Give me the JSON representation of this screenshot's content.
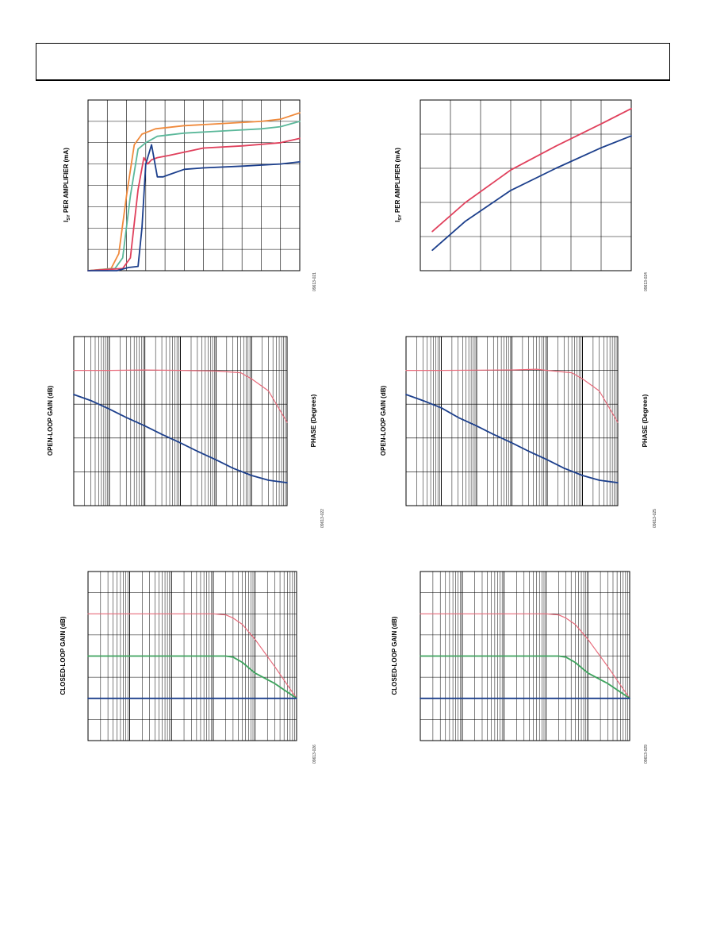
{
  "header": {},
  "colors": {
    "orange": "#f08a3c",
    "teal": "#5bb89a",
    "red": "#e0405c",
    "blue": "#1c3f8c",
    "green": "#3da35d",
    "pink": "#e86a7a"
  },
  "charts": [
    {
      "id": "chart1",
      "ylabel_pre": "I",
      "ylabel_sub": "SY",
      "ylabel_post": " PER AMPLIFIER (mA)",
      "code": "09613-021"
    },
    {
      "id": "chart2",
      "ylabel_pre": "I",
      "ylabel_sub": "SY",
      "ylabel_post": " PER AMPLIFIER (mA)",
      "code": "09613-024"
    },
    {
      "id": "chart3",
      "ylabel": "OPEN-LOOP GAIN (dB)",
      "y2label": "PHASE (Degrees)",
      "code": "09613-022"
    },
    {
      "id": "chart4",
      "ylabel": "OPEN-LOOP GAIN (dB)",
      "y2label": "PHASE (Degrees)",
      "code": "09613-025"
    },
    {
      "id": "chart5",
      "ylabel": "CLOSED-LOOP GAIN (dB)",
      "code": "09613-026"
    },
    {
      "id": "chart6",
      "ylabel": "CLOSED-LOOP GAIN (dB)",
      "code": "09613-029"
    }
  ],
  "chart_data": [
    {
      "type": "line",
      "xlim": [
        0,
        11
      ],
      "ylim": [
        0,
        8
      ],
      "series": [
        {
          "color_key": "orange",
          "x": [
            0,
            1.2,
            1.6,
            2,
            2.4,
            2.8,
            3.5,
            5,
            7,
            9,
            10,
            11
          ],
          "y": [
            0,
            0.1,
            0.8,
            3.5,
            5.9,
            6.4,
            6.65,
            6.8,
            6.9,
            7.0,
            7.1,
            7.4
          ]
        },
        {
          "color_key": "teal",
          "x": [
            0,
            1.4,
            1.8,
            2.2,
            2.6,
            3.0,
            3.6,
            5,
            7,
            9,
            10,
            11
          ],
          "y": [
            0,
            0.1,
            0.6,
            3.5,
            5.7,
            6.0,
            6.3,
            6.45,
            6.55,
            6.65,
            6.75,
            7.0
          ]
        },
        {
          "color_key": "red",
          "x": [
            0,
            1.8,
            2.2,
            2.6,
            2.9,
            3.1,
            3.3,
            3.6,
            4.2,
            6,
            8,
            10,
            11
          ],
          "y": [
            0,
            0.1,
            0.6,
            3.8,
            5.3,
            5.0,
            5.2,
            5.3,
            5.4,
            5.75,
            5.85,
            6.0,
            6.2
          ]
        },
        {
          "color_key": "blue",
          "x": [
            0,
            1.5,
            2.1,
            2.6,
            2.8,
            3.0,
            3.3,
            3.6,
            3.9,
            4.2,
            5,
            6,
            8,
            10,
            11
          ],
          "y": [
            0,
            0,
            0.15,
            0.2,
            2.0,
            5.0,
            5.9,
            4.4,
            4.4,
            4.5,
            4.75,
            4.82,
            4.9,
            5.0,
            5.1
          ]
        }
      ]
    },
    {
      "type": "line",
      "xlim": [
        0,
        7
      ],
      "ylim": [
        0,
        5
      ],
      "series": [
        {
          "color_key": "red",
          "x": [
            0.4,
            1.5,
            3,
            4.5,
            6,
            7
          ],
          "y": [
            1.15,
            2.0,
            2.95,
            3.65,
            4.3,
            4.75
          ]
        },
        {
          "color_key": "blue",
          "x": [
            0.4,
            1.5,
            3,
            4.5,
            6,
            7
          ],
          "y": [
            0.6,
            1.45,
            2.35,
            3.0,
            3.6,
            3.95
          ]
        }
      ]
    },
    {
      "type": "line",
      "xscale": "log",
      "xlim": [
        1,
        1000000
      ],
      "ylim": [
        -40,
        100
      ],
      "series": [
        {
          "color_key": "pink",
          "x": [
            1,
            10,
            100,
            1000,
            10000,
            50000,
            100000,
            300000,
            1000000
          ],
          "y": [
            72,
            72,
            72.3,
            72,
            71.5,
            70,
            65,
            55,
            29
          ]
        },
        {
          "color_key": "blue",
          "x": [
            1,
            3,
            10,
            30,
            100,
            300,
            1000,
            3000,
            10000,
            30000,
            100000,
            300000,
            1000000
          ],
          "y": [
            52,
            47,
            40,
            33,
            26,
            19,
            12,
            5,
            -2,
            -9,
            -15,
            -19,
            -21
          ]
        }
      ]
    },
    {
      "type": "line",
      "xscale": "log",
      "xlim": [
        1,
        1000000
      ],
      "ylim": [
        -40,
        100
      ],
      "series": [
        {
          "color_key": "pink",
          "x": [
            1,
            10,
            100,
            1000,
            5000,
            10000,
            50000,
            100000,
            300000,
            1000000
          ],
          "y": [
            72,
            72,
            72.2,
            72.3,
            73,
            72,
            70,
            65,
            55,
            29
          ]
        },
        {
          "color_key": "blue",
          "x": [
            1,
            3,
            10,
            30,
            100,
            300,
            1000,
            3000,
            10000,
            30000,
            100000,
            300000,
            1000000
          ],
          "y": [
            52,
            47,
            41,
            33,
            26,
            19,
            12,
            5,
            -2,
            -9,
            -15,
            -19,
            -21
          ]
        }
      ]
    },
    {
      "type": "line",
      "xscale": "log",
      "xlim": [
        1,
        100000
      ],
      "ylim": [
        -40,
        40
      ],
      "series": [
        {
          "color_key": "pink",
          "x": [
            1,
            100,
            1000,
            2000,
            3000,
            5000,
            10000,
            30000,
            100000
          ],
          "y": [
            20,
            20,
            20,
            19.5,
            18,
            15,
            8,
            -5,
            -20
          ]
        },
        {
          "color_key": "green",
          "x": [
            1,
            100,
            1000,
            2000,
            3000,
            5000,
            10000,
            30000,
            100000
          ],
          "y": [
            0,
            0,
            0,
            0,
            -0.5,
            -3,
            -8,
            -13,
            -20
          ]
        },
        {
          "color_key": "blue",
          "x": [
            1,
            100,
            10000,
            30000,
            50000,
            100000
          ],
          "y": [
            -20,
            -20,
            -20,
            -20,
            -20,
            -20
          ]
        }
      ]
    },
    {
      "type": "line",
      "xscale": "log",
      "xlim": [
        1,
        100000
      ],
      "ylim": [
        -40,
        40
      ],
      "series": [
        {
          "color_key": "pink",
          "x": [
            1,
            100,
            1000,
            2000,
            3000,
            5000,
            10000,
            30000,
            100000
          ],
          "y": [
            20,
            20,
            20,
            19.5,
            18,
            15,
            8,
            -5,
            -20
          ]
        },
        {
          "color_key": "green",
          "x": [
            1,
            100,
            1000,
            2000,
            3000,
            5000,
            10000,
            30000,
            100000
          ],
          "y": [
            0,
            0,
            0,
            0,
            -0.5,
            -3,
            -8,
            -13,
            -20
          ]
        },
        {
          "color_key": "blue",
          "x": [
            1,
            100,
            10000,
            30000,
            50000,
            100000
          ],
          "y": [
            -20,
            -20,
            -20,
            -20,
            -20,
            -20
          ]
        }
      ]
    }
  ]
}
